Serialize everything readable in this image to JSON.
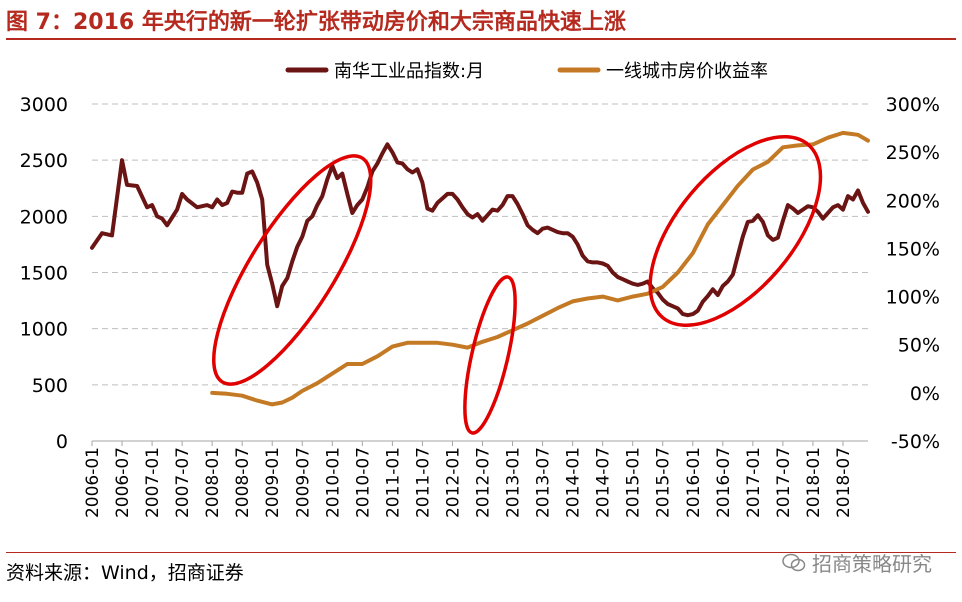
{
  "title": "图 7：2016 年央行的新一轮扩张带动房价和大宗商品快速上涨",
  "source": "资料来源：Wind，招商证券",
  "watermark": "招商策略研究",
  "watermark_icon": "wechat-icon",
  "colors": {
    "title": "#b5291e",
    "series_commodity": "#6b1414",
    "series_housing": "#c47a25",
    "circle": "#e00000",
    "grid": "#bfbfbf"
  },
  "chart_data": {
    "type": "line",
    "legend_position": "top",
    "grid": true,
    "x_tick_labels": [
      "2006-01",
      "2006-07",
      "2007-01",
      "2007-07",
      "2008-01",
      "2008-07",
      "2009-01",
      "2009-07",
      "2010-01",
      "2010-07",
      "2011-01",
      "2011-07",
      "2012-01",
      "2012-07",
      "2013-01",
      "2013-07",
      "2014-01",
      "2014-07",
      "2015-01",
      "2015-07",
      "2016-01",
      "2016-07",
      "2017-01",
      "2017-07",
      "2018-01",
      "2018-07"
    ],
    "y_left": {
      "lim": [
        0,
        3000
      ],
      "ticks": [
        "0",
        "500",
        "1000",
        "1500",
        "2000",
        "2500",
        "3000"
      ],
      "values": [
        0,
        500,
        1000,
        1500,
        2000,
        2500,
        3000
      ]
    },
    "y_right": {
      "lim": [
        -50,
        300
      ],
      "ticks": [
        "-50%",
        "0%",
        "50%",
        "100%",
        "150%",
        "200%",
        "250%",
        "300%"
      ],
      "values": [
        -50,
        0,
        50,
        100,
        150,
        200,
        250,
        300
      ]
    },
    "series": [
      {
        "name": "南华工业品指数:月",
        "axis": "left",
        "points": [
          [
            "2006-01",
            1720
          ],
          [
            "2006-03",
            1850
          ],
          [
            "2006-05",
            1830
          ],
          [
            "2006-07",
            2500
          ],
          [
            "2006-08",
            2280
          ],
          [
            "2006-10",
            2270
          ],
          [
            "2006-12",
            2080
          ],
          [
            "2007-01",
            2100
          ],
          [
            "2007-02",
            2000
          ],
          [
            "2007-03",
            1980
          ],
          [
            "2007-04",
            1920
          ],
          [
            "2007-05",
            1990
          ],
          [
            "2007-06",
            2060
          ],
          [
            "2007-07",
            2200
          ],
          [
            "2007-08",
            2150
          ],
          [
            "2007-10",
            2080
          ],
          [
            "2007-12",
            2100
          ],
          [
            "2008-01",
            2080
          ],
          [
            "2008-02",
            2150
          ],
          [
            "2008-03",
            2100
          ],
          [
            "2008-04",
            2120
          ],
          [
            "2008-05",
            2220
          ],
          [
            "2008-06",
            2210
          ],
          [
            "2008-07",
            2210
          ],
          [
            "2008-08",
            2380
          ],
          [
            "2008-09",
            2400
          ],
          [
            "2008-10",
            2300
          ],
          [
            "2008-11",
            2150
          ],
          [
            "2008-12",
            1570
          ],
          [
            "2009-01",
            1400
          ],
          [
            "2009-02",
            1200
          ],
          [
            "2009-03",
            1380
          ],
          [
            "2009-04",
            1450
          ],
          [
            "2009-05",
            1600
          ],
          [
            "2009-06",
            1730
          ],
          [
            "2009-07",
            1820
          ],
          [
            "2009-08",
            1960
          ],
          [
            "2009-09",
            2000
          ],
          [
            "2009-10",
            2100
          ],
          [
            "2009-11",
            2180
          ],
          [
            "2009-12",
            2330
          ],
          [
            "2010-01",
            2450
          ],
          [
            "2010-02",
            2340
          ],
          [
            "2010-03",
            2380
          ],
          [
            "2010-04",
            2200
          ],
          [
            "2010-05",
            2030
          ],
          [
            "2010-06",
            2100
          ],
          [
            "2010-07",
            2150
          ],
          [
            "2010-08",
            2260
          ],
          [
            "2010-09",
            2400
          ],
          [
            "2010-10",
            2470
          ],
          [
            "2010-11",
            2560
          ],
          [
            "2010-12",
            2640
          ],
          [
            "2011-01",
            2570
          ],
          [
            "2011-02",
            2480
          ],
          [
            "2011-03",
            2470
          ],
          [
            "2011-04",
            2420
          ],
          [
            "2011-05",
            2390
          ],
          [
            "2011-06",
            2420
          ],
          [
            "2011-07",
            2300
          ],
          [
            "2011-08",
            2070
          ],
          [
            "2011-09",
            2050
          ],
          [
            "2011-10",
            2120
          ],
          [
            "2011-11",
            2160
          ],
          [
            "2011-12",
            2200
          ],
          [
            "2012-01",
            2200
          ],
          [
            "2012-02",
            2150
          ],
          [
            "2012-03",
            2080
          ],
          [
            "2012-04",
            2020
          ],
          [
            "2012-05",
            1990
          ],
          [
            "2012-06",
            2020
          ],
          [
            "2012-07",
            1960
          ],
          [
            "2012-08",
            2010
          ],
          [
            "2012-09",
            2060
          ],
          [
            "2012-10",
            2050
          ],
          [
            "2012-11",
            2100
          ],
          [
            "2012-12",
            2180
          ],
          [
            "2013-01",
            2180
          ],
          [
            "2013-02",
            2110
          ],
          [
            "2013-03",
            2020
          ],
          [
            "2013-04",
            1920
          ],
          [
            "2013-05",
            1880
          ],
          [
            "2013-06",
            1850
          ],
          [
            "2013-07",
            1890
          ],
          [
            "2013-08",
            1900
          ],
          [
            "2013-09",
            1880
          ],
          [
            "2013-10",
            1860
          ],
          [
            "2013-11",
            1850
          ],
          [
            "2013-12",
            1850
          ],
          [
            "2014-01",
            1820
          ],
          [
            "2014-02",
            1750
          ],
          [
            "2014-03",
            1650
          ],
          [
            "2014-04",
            1600
          ],
          [
            "2014-05",
            1590
          ],
          [
            "2014-06",
            1590
          ],
          [
            "2014-07",
            1580
          ],
          [
            "2014-08",
            1560
          ],
          [
            "2014-09",
            1500
          ],
          [
            "2014-10",
            1460
          ],
          [
            "2014-11",
            1440
          ],
          [
            "2014-12",
            1420
          ],
          [
            "2015-01",
            1400
          ],
          [
            "2015-02",
            1390
          ],
          [
            "2015-03",
            1400
          ],
          [
            "2015-04",
            1420
          ],
          [
            "2015-05",
            1360
          ],
          [
            "2015-06",
            1320
          ],
          [
            "2015-07",
            1260
          ],
          [
            "2015-08",
            1220
          ],
          [
            "2015-09",
            1200
          ],
          [
            "2015-10",
            1180
          ],
          [
            "2015-11",
            1130
          ],
          [
            "2015-12",
            1120
          ],
          [
            "2016-01",
            1130
          ],
          [
            "2016-02",
            1160
          ],
          [
            "2016-03",
            1240
          ],
          [
            "2016-04",
            1290
          ],
          [
            "2016-05",
            1350
          ],
          [
            "2016-06",
            1300
          ],
          [
            "2016-07",
            1380
          ],
          [
            "2016-08",
            1420
          ],
          [
            "2016-09",
            1480
          ],
          [
            "2016-10",
            1650
          ],
          [
            "2016-11",
            1820
          ],
          [
            "2016-12",
            1950
          ],
          [
            "2017-01",
            1960
          ],
          [
            "2017-02",
            2010
          ],
          [
            "2017-03",
            1950
          ],
          [
            "2017-04",
            1830
          ],
          [
            "2017-05",
            1790
          ],
          [
            "2017-06",
            1810
          ],
          [
            "2017-07",
            1960
          ],
          [
            "2017-08",
            2100
          ],
          [
            "2017-09",
            2070
          ],
          [
            "2017-10",
            2030
          ],
          [
            "2017-11",
            2060
          ],
          [
            "2017-12",
            2090
          ],
          [
            "2018-01",
            2080
          ],
          [
            "2018-02",
            2040
          ],
          [
            "2018-03",
            1980
          ],
          [
            "2018-04",
            2030
          ],
          [
            "2018-05",
            2080
          ],
          [
            "2018-06",
            2100
          ],
          [
            "2018-07",
            2060
          ],
          [
            "2018-08",
            2180
          ],
          [
            "2018-09",
            2150
          ],
          [
            "2018-10",
            2230
          ],
          [
            "2018-11",
            2120
          ],
          [
            "2018-12",
            2040
          ]
        ]
      },
      {
        "name": "一线城市房价收益率",
        "axis": "right",
        "points": [
          [
            "2008-01",
            0
          ],
          [
            "2008-04",
            -1
          ],
          [
            "2008-07",
            -3
          ],
          [
            "2008-10",
            -8
          ],
          [
            "2009-01",
            -12
          ],
          [
            "2009-03",
            -10
          ],
          [
            "2009-05",
            -5
          ],
          [
            "2009-07",
            2
          ],
          [
            "2009-10",
            10
          ],
          [
            "2010-01",
            20
          ],
          [
            "2010-04",
            30
          ],
          [
            "2010-07",
            30
          ],
          [
            "2010-10",
            38
          ],
          [
            "2011-01",
            48
          ],
          [
            "2011-04",
            52
          ],
          [
            "2011-07",
            52
          ],
          [
            "2011-10",
            52
          ],
          [
            "2012-01",
            50
          ],
          [
            "2012-04",
            47
          ],
          [
            "2012-07",
            53
          ],
          [
            "2012-10",
            58
          ],
          [
            "2013-01",
            65
          ],
          [
            "2013-04",
            72
          ],
          [
            "2013-07",
            80
          ],
          [
            "2013-10",
            88
          ],
          [
            "2014-01",
            95
          ],
          [
            "2014-04",
            98
          ],
          [
            "2014-07",
            100
          ],
          [
            "2014-10",
            96
          ],
          [
            "2015-01",
            100
          ],
          [
            "2015-04",
            103
          ],
          [
            "2015-07",
            110
          ],
          [
            "2015-10",
            125
          ],
          [
            "2016-01",
            145
          ],
          [
            "2016-04",
            175
          ],
          [
            "2016-07",
            195
          ],
          [
            "2016-10",
            215
          ],
          [
            "2017-01",
            232
          ],
          [
            "2017-04",
            240
          ],
          [
            "2017-07",
            255
          ],
          [
            "2017-10",
            257
          ],
          [
            "2018-01",
            258
          ],
          [
            "2018-04",
            265
          ],
          [
            "2018-07",
            270
          ],
          [
            "2018-10",
            268
          ],
          [
            "2018-12",
            262
          ]
        ]
      }
    ],
    "annotations": [
      {
        "type": "ellipse",
        "from": "2008-07",
        "to": "2010-03"
      },
      {
        "type": "ellipse",
        "from": "2012-04",
        "to": "2013-01"
      },
      {
        "type": "ellipse",
        "from": "2015-07",
        "to": "2017-12"
      }
    ]
  }
}
